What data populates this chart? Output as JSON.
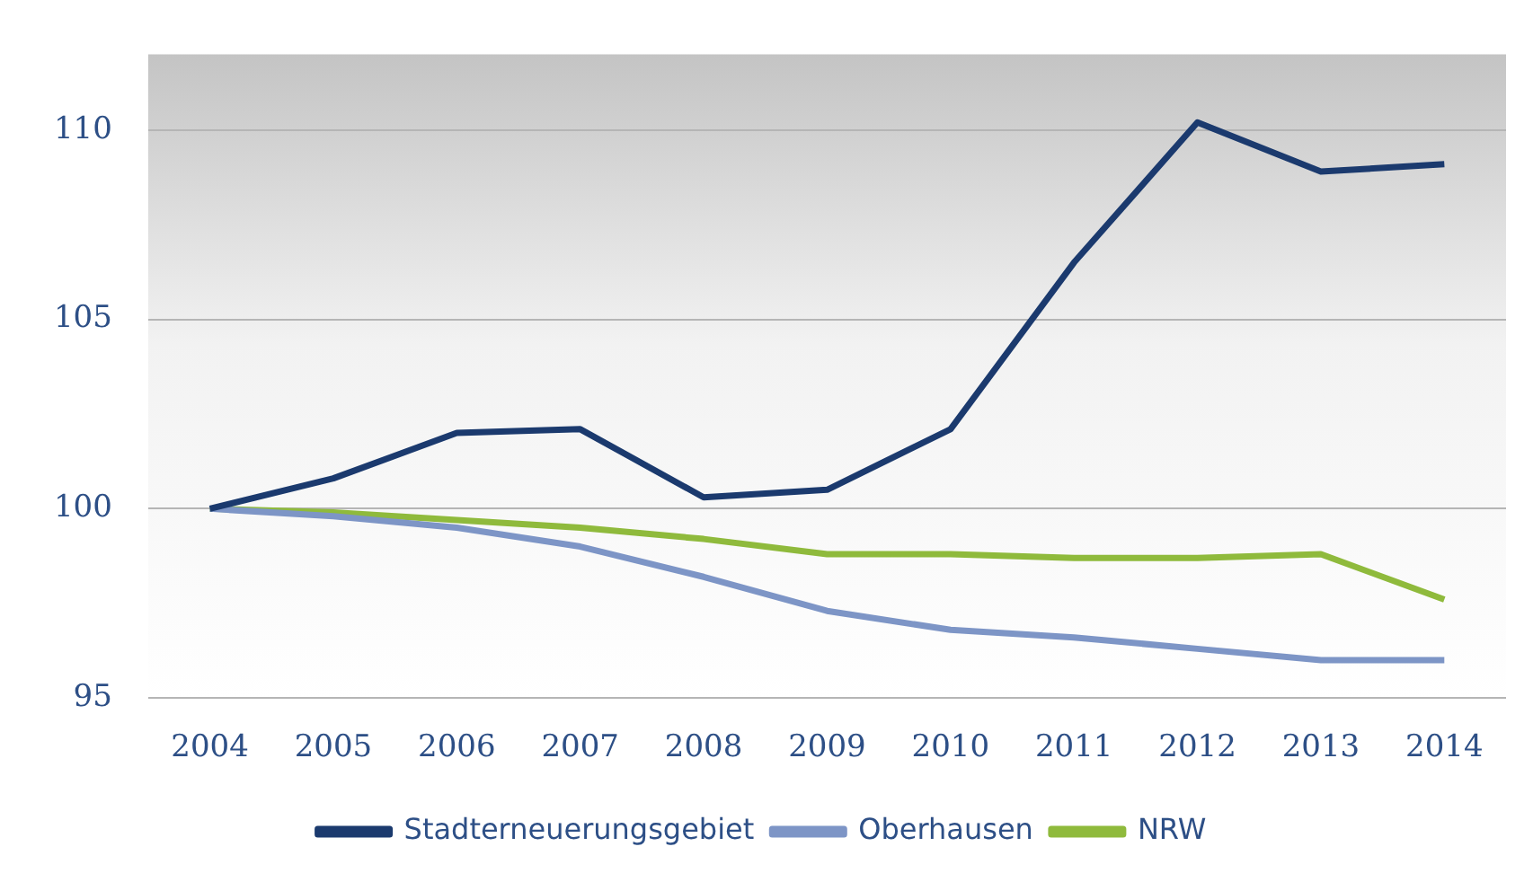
{
  "chart_data": {
    "type": "line",
    "categories": [
      "2004",
      "2005",
      "2006",
      "2007",
      "2008",
      "2009",
      "2010",
      "2011",
      "2012",
      "2013",
      "2014"
    ],
    "series": [
      {
        "name": "Stadterneuerungsgebiet",
        "color": "#1b3a6e",
        "values": [
          100,
          100.8,
          102,
          102.1,
          100.3,
          100.5,
          102.1,
          106.5,
          110.2,
          108.9,
          109.1
        ]
      },
      {
        "name": "Oberhausen",
        "color": "#7d95c6",
        "values": [
          100,
          99.8,
          99.5,
          99,
          98.2,
          97.3,
          96.8,
          96.6,
          96.3,
          96,
          96
        ]
      },
      {
        "name": "NRW",
        "color": "#8fba3c",
        "values": [
          100,
          99.9,
          99.7,
          99.5,
          99.2,
          98.8,
          98.8,
          98.7,
          98.7,
          98.8,
          97.6
        ]
      }
    ],
    "ylim": [
      95,
      112
    ],
    "yticks": [
      95,
      100,
      105,
      110
    ],
    "grid": "y",
    "legend": "bottom",
    "marker": "none",
    "line_style": "solid"
  }
}
